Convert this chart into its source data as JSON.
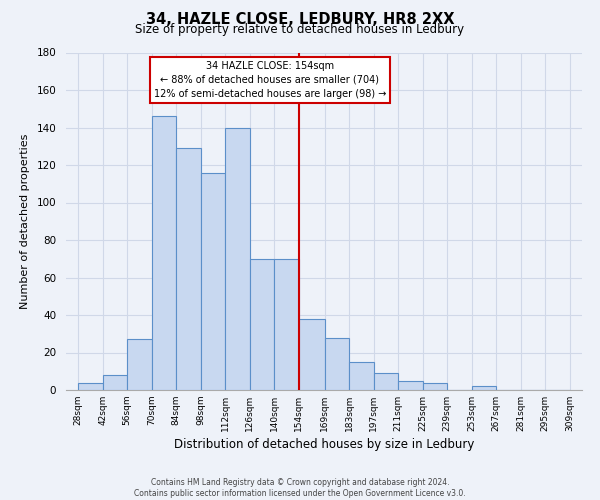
{
  "title": "34, HAZLE CLOSE, LEDBURY, HR8 2XX",
  "subtitle": "Size of property relative to detached houses in Ledbury",
  "xlabel": "Distribution of detached houses by size in Ledbury",
  "ylabel": "Number of detached properties",
  "bar_left_edges": [
    28,
    42,
    56,
    70,
    84,
    98,
    112,
    126,
    140,
    154,
    169,
    183,
    197,
    211,
    225,
    239,
    253,
    267,
    281,
    295
  ],
  "bar_heights": [
    4,
    8,
    27,
    146,
    129,
    116,
    140,
    70,
    70,
    38,
    28,
    15,
    9,
    5,
    4,
    0,
    2,
    0,
    0,
    0
  ],
  "bar_widths": [
    14,
    14,
    14,
    14,
    14,
    14,
    14,
    14,
    14,
    15,
    14,
    14,
    14,
    14,
    14,
    14,
    14,
    14,
    14,
    14
  ],
  "tick_labels": [
    "28sqm",
    "42sqm",
    "56sqm",
    "70sqm",
    "84sqm",
    "98sqm",
    "112sqm",
    "126sqm",
    "140sqm",
    "154sqm",
    "169sqm",
    "183sqm",
    "197sqm",
    "211sqm",
    "225sqm",
    "239sqm",
    "253sqm",
    "267sqm",
    "281sqm",
    "295sqm",
    "309sqm"
  ],
  "tick_positions": [
    28,
    42,
    56,
    70,
    84,
    98,
    112,
    126,
    140,
    154,
    169,
    183,
    197,
    211,
    225,
    239,
    253,
    267,
    281,
    295,
    309
  ],
  "bar_color": "#c8d8f0",
  "bar_edge_color": "#5b8fc9",
  "vline_x": 154,
  "vline_color": "#cc0000",
  "ylim": [
    0,
    180
  ],
  "xlim": [
    21,
    316
  ],
  "annotation_title": "34 HAZLE CLOSE: 154sqm",
  "annotation_line1": "← 88% of detached houses are smaller (704)",
  "annotation_line2": "12% of semi-detached houses are larger (98) →",
  "footer_line1": "Contains HM Land Registry data © Crown copyright and database right 2024.",
  "footer_line2": "Contains public sector information licensed under the Open Government Licence v3.0.",
  "background_color": "#eef2f9",
  "grid_color": "#d0d8e8",
  "title_fontsize": 10.5,
  "subtitle_fontsize": 8.5
}
